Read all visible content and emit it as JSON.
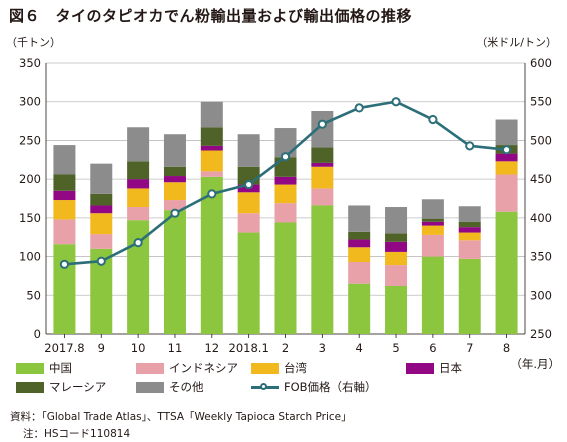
{
  "title": "図６　タイのタピオカでん粉輸出量および輸出価格の推移",
  "left_unit": "（千トン）",
  "right_unit": "（米ドル/トン）",
  "x_unit": "（年.月）",
  "source": "資料：「Global Trade Atlas」、TTSA「Weekly Tapioca Starch Price」",
  "note": "注：HSコード110814",
  "chart_data": {
    "type": "bar",
    "stacked": true,
    "categories": [
      "2017.8",
      "9",
      "10",
      "11",
      "12",
      "2018.1",
      "2",
      "3",
      "4",
      "5",
      "6",
      "7",
      "8"
    ],
    "y_left": {
      "min": 0,
      "max": 350,
      "ticks": [
        0,
        50,
        100,
        150,
        200,
        250,
        300,
        350
      ]
    },
    "y_right": {
      "min": 250,
      "max": 600,
      "ticks": [
        250,
        300,
        350,
        400,
        450,
        500,
        550,
        600
      ]
    },
    "series": [
      {
        "name": "中国",
        "color": "#8cc63f",
        "values": [
          116,
          110,
          147,
          160,
          203,
          131,
          144,
          166,
          65,
          62,
          100,
          97,
          158
        ]
      },
      {
        "name": "インドネシア",
        "color": "#e8a1a8",
        "values": [
          32,
          19,
          17,
          13,
          7,
          25,
          25,
          22,
          28,
          27,
          28,
          24,
          48
        ]
      },
      {
        "name": "台湾",
        "color": "#f2b91e",
        "values": [
          25,
          27,
          24,
          23,
          27,
          27,
          24,
          28,
          19,
          17,
          12,
          10,
          17
        ]
      },
      {
        "name": "日本",
        "color": "#920783",
        "values": [
          12,
          10,
          12,
          8,
          6,
          10,
          10,
          5,
          10,
          13,
          5,
          7,
          10
        ]
      },
      {
        "name": "マレーシア",
        "color": "#4f6228",
        "values": [
          21,
          15,
          23,
          12,
          24,
          23,
          25,
          20,
          10,
          11,
          4,
          7,
          11
        ]
      },
      {
        "name": "その他",
        "color": "#8c8c8c",
        "values": [
          38,
          39,
          44,
          42,
          33,
          42,
          38,
          47,
          34,
          34,
          25,
          20,
          33
        ]
      }
    ],
    "line": {
      "name": "FOB価格（右軸）",
      "color": "#2d6f79",
      "axis": "right",
      "values": [
        340,
        344,
        368,
        406,
        431,
        443,
        479,
        521,
        542,
        550,
        527,
        493,
        488
      ]
    }
  }
}
